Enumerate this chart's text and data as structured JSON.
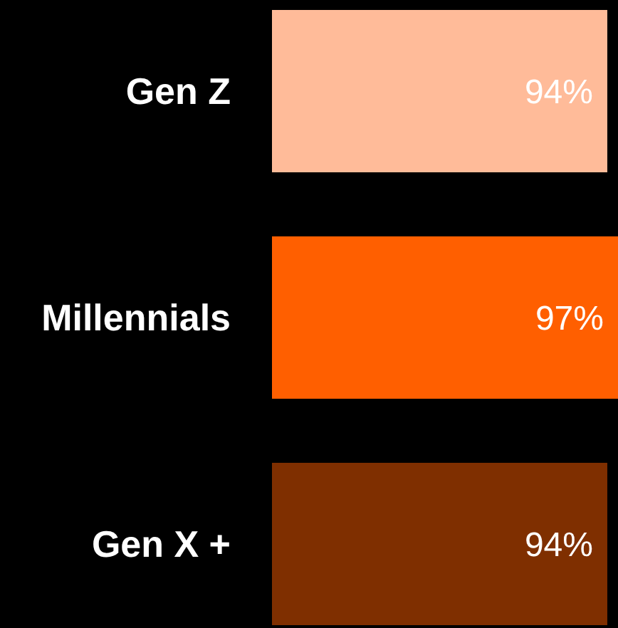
{
  "chart_data": {
    "type": "bar",
    "orientation": "horizontal",
    "categories": [
      "Gen Z",
      "Millennials",
      "Gen X +"
    ],
    "values": [
      94,
      97,
      94
    ],
    "colors": [
      "#ffbb99",
      "#ff5f00",
      "#7f2f00"
    ],
    "data_labels": true,
    "value_labels": [
      "94%",
      "97%",
      "94%"
    ]
  }
}
